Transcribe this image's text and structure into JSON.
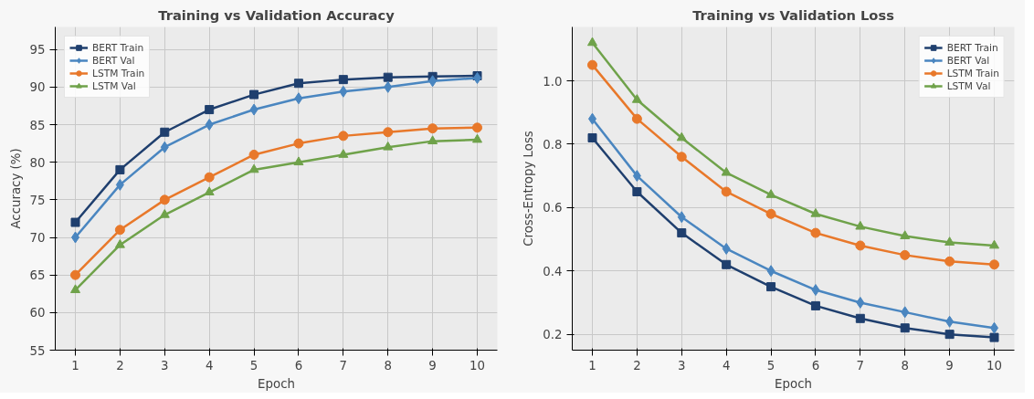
{
  "chart_data": [
    {
      "type": "line",
      "title": "Training vs Validation Accuracy",
      "xlabel": "Epoch",
      "ylabel": "Accuracy (%)",
      "x": [
        1,
        2,
        3,
        4,
        5,
        6,
        7,
        8,
        9,
        10
      ],
      "xlim": [
        0.55,
        10.45
      ],
      "xticks": [
        1,
        2,
        3,
        4,
        5,
        6,
        7,
        8,
        9,
        10
      ],
      "ylim": [
        55,
        98
      ],
      "yticks": [
        55,
        60,
        65,
        70,
        75,
        80,
        85,
        90,
        95
      ],
      "grid": true,
      "legend": "top left",
      "series": [
        {
          "name": "BERT Train",
          "color": "#1f3f6e",
          "marker": "square",
          "values": [
            72,
            79,
            84,
            87,
            89,
            90.5,
            91,
            91.3,
            91.4,
            91.5
          ]
        },
        {
          "name": "BERT Val",
          "color": "#4a86c0",
          "marker": "diamond",
          "values": [
            70,
            77,
            82,
            85,
            87,
            88.5,
            89.4,
            90,
            90.8,
            91.2
          ]
        },
        {
          "name": "LSTM Train",
          "color": "#e8782a",
          "marker": "circle",
          "values": [
            65,
            71,
            75,
            78,
            81,
            82.5,
            83.5,
            84,
            84.5,
            84.6
          ]
        },
        {
          "name": "LSTM Val",
          "color": "#6fa24a",
          "marker": "triangle",
          "values": [
            63,
            69,
            73,
            76,
            79,
            80,
            81,
            82,
            82.8,
            83
          ]
        }
      ]
    },
    {
      "type": "line",
      "title": "Training vs Validation Loss",
      "xlabel": "Epoch",
      "ylabel": "Cross-Entropy Loss",
      "x": [
        1,
        2,
        3,
        4,
        5,
        6,
        7,
        8,
        9,
        10
      ],
      "xlim": [
        0.55,
        10.45
      ],
      "xticks": [
        1,
        2,
        3,
        4,
        5,
        6,
        7,
        8,
        9,
        10
      ],
      "ylim": [
        0.15,
        1.17
      ],
      "yticks": [
        {
          "value": 0.2,
          "label": "0.2"
        },
        {
          "value": 0.4,
          "label": "0.4"
        },
        {
          "value": 0.6,
          "label": "0.6"
        },
        {
          "value": 0.8,
          "label": "0.8"
        },
        {
          "value": 1.0,
          "label": "1.0"
        }
      ],
      "grid": true,
      "legend": "top right",
      "series": [
        {
          "name": "BERT Train",
          "color": "#1f3f6e",
          "marker": "square",
          "values": [
            0.82,
            0.65,
            0.52,
            0.42,
            0.35,
            0.29,
            0.25,
            0.22,
            0.2,
            0.19
          ]
        },
        {
          "name": "BERT Val",
          "color": "#4a86c0",
          "marker": "diamond",
          "values": [
            0.88,
            0.7,
            0.57,
            0.47,
            0.4,
            0.34,
            0.3,
            0.27,
            0.24,
            0.22
          ]
        },
        {
          "name": "LSTM Train",
          "color": "#e8782a",
          "marker": "circle",
          "values": [
            1.05,
            0.88,
            0.76,
            0.65,
            0.58,
            0.52,
            0.48,
            0.45,
            0.43,
            0.42
          ]
        },
        {
          "name": "LSTM Val",
          "color": "#6fa24a",
          "marker": "triangle",
          "values": [
            1.12,
            0.94,
            0.82,
            0.71,
            0.64,
            0.58,
            0.54,
            0.51,
            0.49,
            0.48
          ]
        }
      ]
    }
  ]
}
